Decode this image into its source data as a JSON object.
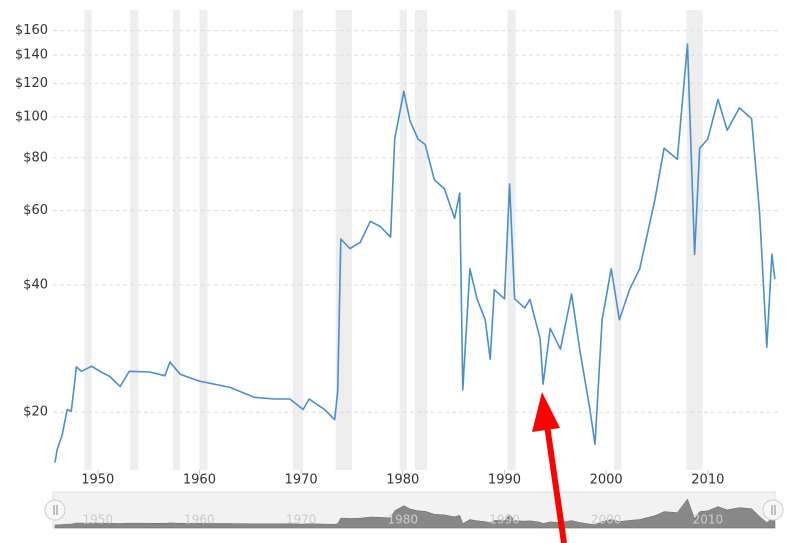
{
  "chart_data": {
    "type": "line",
    "x": [
      1945.8,
      1946.0,
      1946.5,
      1947.0,
      1947.4,
      1947.9,
      1948.4,
      1949.4,
      1950.2,
      1951.2,
      1952.2,
      1953.1,
      1955.1,
      1956.6,
      1957.1,
      1958.1,
      1960.0,
      1963.0,
      1965.4,
      1967.4,
      1968.9,
      1970.2,
      1970.8,
      1972.3,
      1973.3,
      1973.6,
      1973.9,
      1974.8,
      1975.8,
      1976.8,
      1977.8,
      1978.8,
      1979.2,
      1980.1,
      1980.7,
      1981.5,
      1982.2,
      1983.1,
      1984.1,
      1985.1,
      1985.6,
      1985.9,
      1986.6,
      1987.3,
      1988.1,
      1988.6,
      1989.0,
      1990.0,
      1990.5,
      1991.0,
      1992.0,
      1992.5,
      1993.5,
      1993.8,
      1994.5,
      1995.5,
      1996.6,
      1997.4,
      1998.4,
      1998.9,
      1999.6,
      2000.5,
      2001.3,
      2002.3,
      2003.3,
      2004.8,
      2005.7,
      2007.0,
      2008.0,
      2008.7,
      2009.2,
      2010.0,
      2011.0,
      2011.9,
      2013.1,
      2014.3,
      2015.1,
      2015.8,
      2016.3,
      2016.6
    ],
    "series": [
      {
        "color": "#4a8fcd",
        "values": [
          15.2,
          16.3,
          17.7,
          20.3,
          20.1,
          25.6,
          25.0,
          25.7,
          25.0,
          24.3,
          23.0,
          25.0,
          24.9,
          24.4,
          26.3,
          24.6,
          23.7,
          22.9,
          21.7,
          21.5,
          21.5,
          20.3,
          21.5,
          20.3,
          19.2,
          22.4,
          51.4,
          48.8,
          50.4,
          56.6,
          55.0,
          51.9,
          88.6,
          115.0,
          98.0,
          88.6,
          86.0,
          71.0,
          67.5,
          57.5,
          66.0,
          22.6,
          43.7,
          37.1,
          33.1,
          26.7,
          39.0,
          37.1,
          69.4,
          37.1,
          35.3,
          37.0,
          29.9,
          23.3,
          31.6,
          28.2,
          38.1,
          28.2,
          20.3,
          16.8,
          33.1,
          43.7,
          33.1,
          39.0,
          43.7,
          63.8,
          84.3,
          79.4,
          148.6,
          47.3,
          84.3,
          88.6,
          110.0,
          93.0,
          105.0,
          99.0,
          58.7,
          28.5,
          47.3,
          41.3
        ]
      }
    ],
    "xlim": [
      1945.6,
      2016.9
    ],
    "xticks": [
      1950,
      1960,
      1970,
      1980,
      1990,
      2000,
      2010
    ],
    "ylim": [
      14.6,
      179
    ],
    "yticks": [
      {
        "value": 20,
        "label": "$20"
      },
      {
        "value": 40,
        "label": "$40"
      },
      {
        "value": 60,
        "label": "$60"
      },
      {
        "value": 80,
        "label": "$80"
      },
      {
        "value": 100,
        "label": "$100"
      },
      {
        "value": 120,
        "label": "$120"
      },
      {
        "value": 140,
        "label": "$140"
      },
      {
        "value": 160,
        "label": "$160"
      }
    ],
    "log_scale": true,
    "grid": true,
    "shaded_periods": [
      [
        1948.7,
        1949.4
      ],
      [
        1953.2,
        1954.0
      ],
      [
        1957.4,
        1958.1
      ],
      [
        1960.0,
        1960.8
      ],
      [
        1969.2,
        1970.2
      ],
      [
        1973.4,
        1975.0
      ],
      [
        1979.7,
        1980.4
      ],
      [
        1981.2,
        1982.4
      ],
      [
        1990.3,
        1991.1
      ],
      [
        2000.8,
        2001.5
      ],
      [
        2007.9,
        2009.5
      ]
    ]
  }
}
